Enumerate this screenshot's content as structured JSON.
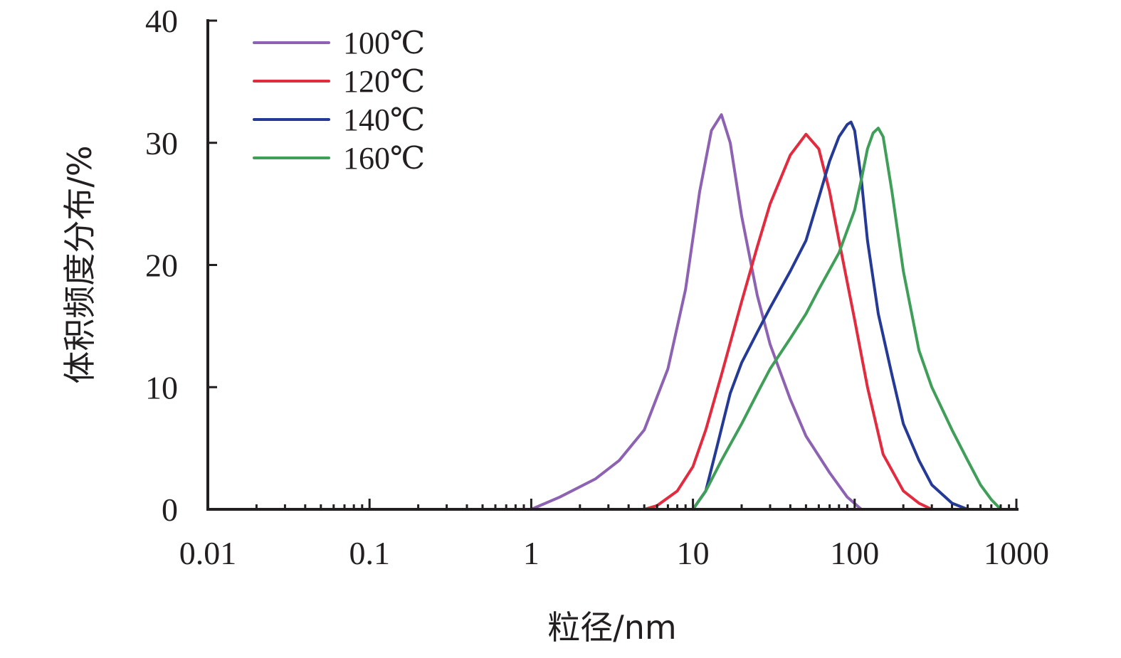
{
  "chart_data": {
    "type": "line",
    "title": "",
    "xlabel": "粒径/nm",
    "ylabel": "体积频度分布/%",
    "x_scale": "log",
    "xlim": [
      0.01,
      1000
    ],
    "ylim": [
      0,
      40
    ],
    "x_ticks": [
      "0.01",
      "0.1",
      "1",
      "10",
      "100",
      "1000"
    ],
    "y_ticks": [
      "0",
      "10",
      "20",
      "30",
      "40"
    ],
    "grid": false,
    "legend_position": "top-left",
    "series": [
      {
        "name": "100℃",
        "color": "#8e62b3",
        "x": [
          1.0,
          1.5,
          2.5,
          3.5,
          5.0,
          7.0,
          9.0,
          11.0,
          13.0,
          15.0,
          17.0,
          20.0,
          25.0,
          30.0,
          40.0,
          50.0,
          70.0,
          90.0,
          110.0
        ],
        "y": [
          0,
          1.0,
          2.5,
          4.0,
          6.5,
          11.5,
          18.0,
          26.0,
          31.0,
          32.3,
          30.0,
          24.0,
          17.5,
          13.5,
          9.0,
          6.0,
          3.0,
          1.0,
          0
        ]
      },
      {
        "name": "120℃",
        "color": "#e32b3f",
        "x": [
          5.0,
          6.0,
          8.0,
          10.0,
          12.0,
          15.0,
          20.0,
          25.0,
          30.0,
          40.0,
          50.0,
          60.0,
          70.0,
          80.0,
          100.0,
          120.0,
          150.0,
          200.0,
          250.0,
          300.0
        ],
        "y": [
          0,
          0.3,
          1.5,
          3.5,
          6.5,
          11.0,
          17.0,
          21.5,
          25.0,
          29.0,
          30.7,
          29.5,
          26.0,
          22.0,
          15.5,
          10.0,
          4.5,
          1.5,
          0.5,
          0
        ]
      },
      {
        "name": "140℃",
        "color": "#243a96",
        "x": [
          10.0,
          12.0,
          14.0,
          17.0,
          20.0,
          25.0,
          30.0,
          40.0,
          50.0,
          60.0,
          70.0,
          80.0,
          90.0,
          95.0,
          100.0,
          110.0,
          120.0,
          140.0,
          170.0,
          200.0,
          250.0,
          300.0,
          400.0,
          500.0
        ],
        "y": [
          0,
          1.5,
          5.0,
          9.5,
          12.0,
          14.5,
          16.5,
          19.5,
          22.0,
          25.5,
          28.5,
          30.5,
          31.5,
          31.7,
          31.0,
          27.0,
          22.0,
          16.0,
          11.0,
          7.0,
          4.0,
          2.0,
          0.5,
          0
        ]
      },
      {
        "name": "160℃",
        "color": "#3f9e58",
        "x": [
          10.0,
          12.0,
          15.0,
          20.0,
          25.0,
          30.0,
          40.0,
          50.0,
          60.0,
          80.0,
          100.0,
          110.0,
          120.0,
          130.0,
          140.0,
          150.0,
          170.0,
          200.0,
          250.0,
          300.0,
          400.0,
          500.0,
          600.0,
          700.0,
          800.0
        ],
        "y": [
          0,
          1.5,
          4.0,
          7.0,
          9.5,
          11.5,
          14.0,
          16.0,
          18.0,
          21.0,
          24.5,
          27.0,
          29.5,
          30.8,
          31.2,
          30.5,
          26.0,
          19.5,
          13.0,
          10.0,
          6.5,
          4.0,
          2.0,
          0.8,
          0
        ]
      }
    ]
  }
}
